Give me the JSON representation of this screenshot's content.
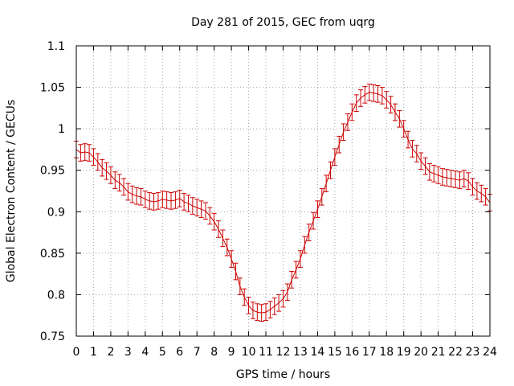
{
  "chart_data": {
    "type": "line",
    "title": "Day 281 of 2015, GEC from uqrg",
    "xlabel": "GPS time / hours",
    "ylabel": "Global Electron Content / GECUs",
    "xlim": [
      0,
      24
    ],
    "ylim": [
      0.75,
      1.1
    ],
    "xticks": [
      "0",
      "1",
      "2",
      "3",
      "4",
      "5",
      "6",
      "7",
      "8",
      "9",
      "10",
      "11",
      "12",
      "13",
      "14",
      "15",
      "16",
      "17",
      "18",
      "19",
      "20",
      "21",
      "22",
      "23",
      "24"
    ],
    "yticks": [
      "0.75",
      "0.8",
      "0.85",
      "0.9",
      "0.95",
      "1",
      "1.05",
      "1.1"
    ],
    "grid": true,
    "legend": "none",
    "error_bars": true,
    "series": [
      {
        "color": "#cc0000",
        "error": 0.01,
        "x": [
          0,
          0.25,
          0.5,
          0.75,
          1,
          1.25,
          1.5,
          1.75,
          2,
          2.25,
          2.5,
          2.75,
          3,
          3.25,
          3.5,
          3.75,
          4,
          4.25,
          4.5,
          4.75,
          5,
          5.25,
          5.5,
          5.75,
          6,
          6.25,
          6.5,
          6.75,
          7,
          7.25,
          7.5,
          7.75,
          8,
          8.25,
          8.5,
          8.75,
          9,
          9.25,
          9.5,
          9.75,
          10,
          10.25,
          10.5,
          10.75,
          11,
          11.25,
          11.5,
          11.75,
          12,
          12.25,
          12.5,
          12.75,
          13,
          13.25,
          13.5,
          13.75,
          14,
          14.25,
          14.5,
          14.75,
          15,
          15.25,
          15.5,
          15.75,
          16,
          16.25,
          16.5,
          16.75,
          17,
          17.25,
          17.5,
          17.75,
          18,
          18.25,
          18.5,
          18.75,
          19,
          19.25,
          19.5,
          19.75,
          20,
          20.25,
          20.5,
          20.75,
          21,
          21.25,
          21.5,
          21.75,
          22,
          22.25,
          22.5,
          22.75,
          23,
          23.25,
          23.5,
          23.75,
          24
        ],
        "y": [
          0.975,
          0.971,
          0.972,
          0.971,
          0.966,
          0.96,
          0.953,
          0.949,
          0.944,
          0.938,
          0.935,
          0.93,
          0.924,
          0.921,
          0.919,
          0.918,
          0.915,
          0.913,
          0.912,
          0.913,
          0.915,
          0.914,
          0.913,
          0.914,
          0.916,
          0.912,
          0.91,
          0.907,
          0.905,
          0.903,
          0.901,
          0.895,
          0.888,
          0.879,
          0.868,
          0.857,
          0.843,
          0.828,
          0.81,
          0.797,
          0.787,
          0.781,
          0.779,
          0.778,
          0.779,
          0.782,
          0.786,
          0.79,
          0.795,
          0.803,
          0.818,
          0.83,
          0.843,
          0.86,
          0.875,
          0.889,
          0.903,
          0.918,
          0.934,
          0.95,
          0.966,
          0.981,
          0.996,
          1.008,
          1.02,
          1.031,
          1.037,
          1.041,
          1.044,
          1.043,
          1.042,
          1.04,
          1.035,
          1.029,
          1.02,
          1.012,
          1.0,
          0.987,
          0.976,
          0.97,
          0.961,
          0.955,
          0.948,
          0.946,
          0.944,
          0.942,
          0.941,
          0.94,
          0.939,
          0.938,
          0.94,
          0.937,
          0.93,
          0.925,
          0.922,
          0.918,
          0.911
        ]
      }
    ]
  }
}
